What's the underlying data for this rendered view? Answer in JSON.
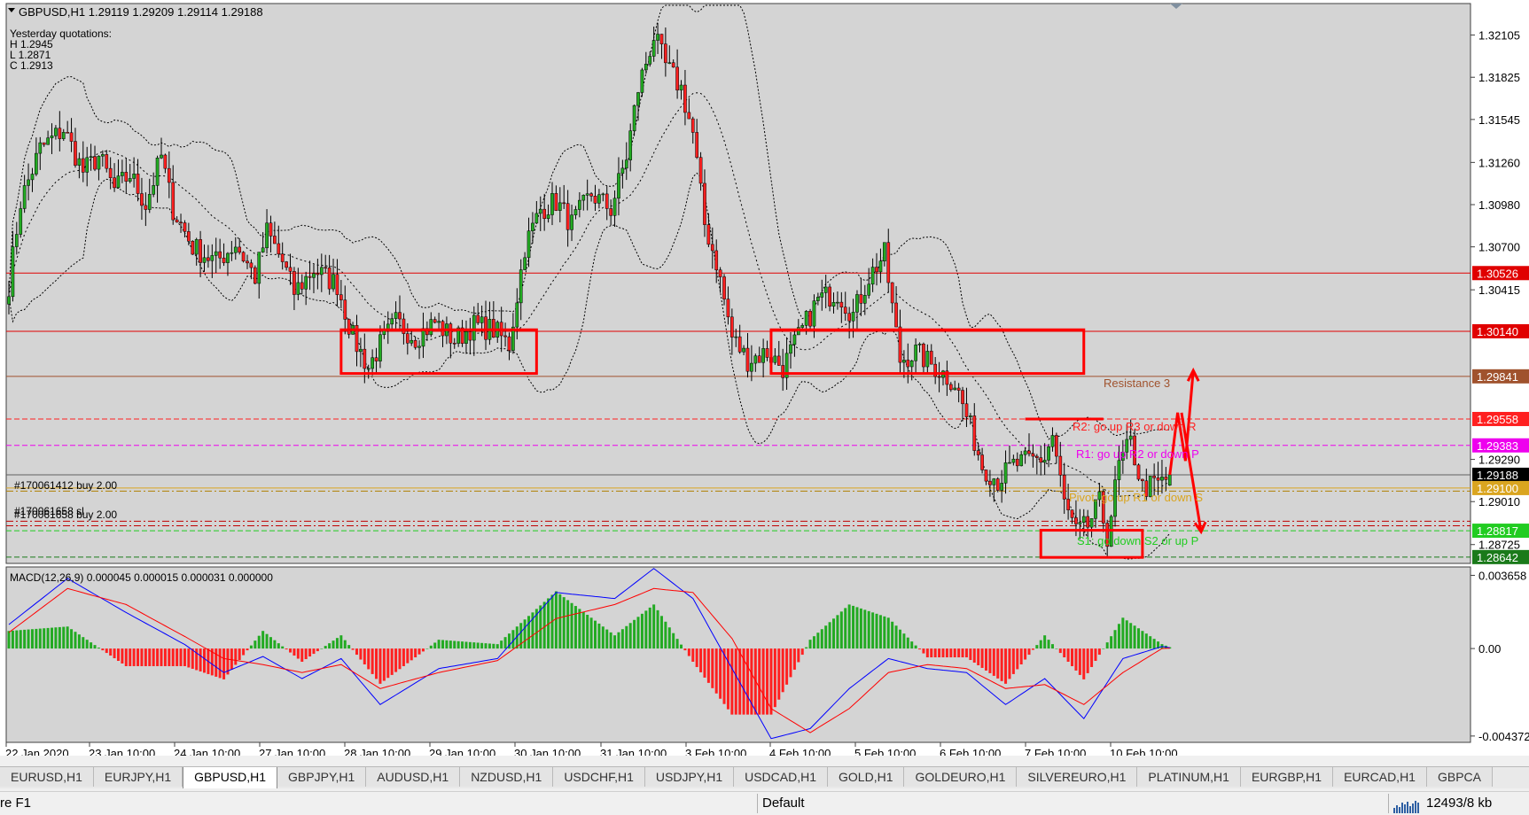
{
  "header": {
    "symbol_line": "GBPUSD,H1  1.29119 1.29209 1.29114 1.29188",
    "yesterday_title": "Yesterday quotations:",
    "yesterday_high": "H 1.2945",
    "yesterday_low": "L 1.2871",
    "yesterday_close": "C 1.2913"
  },
  "chart_data": [
    {
      "type": "candlestick",
      "symbol": "GBPUSD",
      "timeframe": "H1",
      "ohlc_current": {
        "open": 1.29119,
        "high": 1.29209,
        "low": 1.29114,
        "close": 1.29188
      },
      "ylim": [
        1.286,
        1.3222
      ],
      "y_ticks": [
        1.32105,
        1.31825,
        1.31545,
        1.3126,
        1.3098,
        1.307,
        1.30415,
        1.2929,
        1.2901,
        1.28725
      ],
      "y_tick_labels": [
        "1.32105",
        "1.31825",
        "1.31545",
        "1.31260",
        "1.30980",
        "1.30700",
        "1.30415",
        "1.29290",
        "1.29010",
        "1.28725"
      ],
      "x_labels": [
        "22 Jan 2020",
        "23 Jan 10:00",
        "24 Jan 10:00",
        "27 Jan 10:00",
        "28 Jan 10:00",
        "29 Jan 10:00",
        "30 Jan 10:00",
        "31 Jan 10:00",
        "3 Feb 10:00",
        "4 Feb 10:00",
        "5 Feb 10:00",
        "6 Feb 10:00",
        "7 Feb 10:00",
        "10 Feb 10:00"
      ],
      "overlay": "bollinger-bands",
      "price_path": [
        [
          0,
          1.3045
        ],
        [
          3,
          1.31
        ],
        [
          8,
          1.3135
        ],
        [
          14,
          1.3148
        ],
        [
          19,
          1.312
        ],
        [
          23,
          1.313
        ],
        [
          27,
          1.3108
        ],
        [
          31,
          1.3118
        ],
        [
          35,
          1.3098
        ],
        [
          39,
          1.313
        ],
        [
          42,
          1.3095
        ],
        [
          47,
          1.307
        ],
        [
          53,
          1.306
        ],
        [
          58,
          1.3072
        ],
        [
          63,
          1.305
        ],
        [
          66,
          1.308
        ],
        [
          70,
          1.306
        ],
        [
          73,
          1.304
        ],
        [
          78,
          1.3055
        ],
        [
          84,
          1.3045
        ],
        [
          88,
          1.301
        ],
        [
          92,
          1.299
        ],
        [
          95,
          1.3005
        ],
        [
          99,
          1.302
        ],
        [
          104,
          1.301
        ],
        [
          109,
          1.302
        ],
        [
          114,
          1.3008
        ],
        [
          119,
          1.3018
        ],
        [
          124,
          1.3015
        ],
        [
          128,
          1.3005
        ],
        [
          132,
          1.307
        ],
        [
          136,
          1.3095
        ],
        [
          140,
          1.31
        ],
        [
          144,
          1.3085
        ],
        [
          149,
          1.3105
        ],
        [
          154,
          1.3095
        ],
        [
          158,
          1.313
        ],
        [
          161,
          1.3175
        ],
        [
          165,
          1.321
        ],
        [
          168,
          1.319
        ],
        [
          172,
          1.3175
        ],
        [
          175,
          1.3145
        ],
        [
          178,
          1.3085
        ],
        [
          181,
          1.306
        ],
        [
          185,
          1.301
        ],
        [
          189,
          1.2995
        ],
        [
          194,
          1.3
        ],
        [
          198,
          1.299
        ],
        [
          203,
          1.3015
        ],
        [
          207,
          1.3035
        ],
        [
          212,
          1.304
        ],
        [
          216,
          1.3025
        ],
        [
          220,
          1.305
        ],
        [
          224,
          1.3065
        ],
        [
          228,
          1.2995
        ],
        [
          232,
          1.3
        ],
        [
          237,
          1.299
        ],
        [
          242,
          1.298
        ],
        [
          246,
          1.295
        ],
        [
          249,
          1.2925
        ],
        [
          253,
          1.2915
        ],
        [
          257,
          1.2925
        ],
        [
          261,
          1.2928
        ],
        [
          265,
          1.293
        ],
        [
          267,
          1.2945
        ],
        [
          270,
          1.29
        ],
        [
          273,
          1.288
        ],
        [
          276,
          1.2885
        ],
        [
          279,
          1.29
        ],
        [
          281,
          1.2878
        ],
        [
          284,
          1.2925
        ],
        [
          287,
          1.294
        ],
        [
          290,
          1.291
        ],
        [
          293,
          1.2912
        ],
        [
          296,
          1.2915
        ],
        [
          297,
          1.29188
        ]
      ],
      "levels": [
        {
          "name": "level-1.30526",
          "value": 1.30526,
          "label": "1.30526",
          "color": "#e00000"
        },
        {
          "name": "level-1.30140",
          "value": 1.3014,
          "label": "1.30140",
          "color": "#e00000"
        },
        {
          "name": "level-1.29841",
          "value": 1.29841,
          "label": "1.29841",
          "color": "#a0522d"
        },
        {
          "name": "level-1.29558",
          "value": 1.29558,
          "label": "1.29558",
          "color": "#ff2020"
        },
        {
          "name": "level-1.29383",
          "value": 1.29383,
          "label": "1.29383",
          "color": "#ee00ee"
        },
        {
          "name": "level-1.29188",
          "value": 1.29188,
          "label": "1.29188",
          "color": "#000000"
        },
        {
          "name": "level-1.29100",
          "value": 1.291,
          "label": "1.29100",
          "color": "#daa520"
        },
        {
          "name": "level-1.28817",
          "value": 1.28817,
          "label": "1.28817",
          "color": "#22cc22"
        },
        {
          "name": "level-1.28642",
          "value": 1.28642,
          "label": "1.28642",
          "color": "#1a7a1a"
        }
      ],
      "order_labels": [
        "#170061412 buy 2.00",
        "#170061658 sl",
        "#170061658 buy 2.00"
      ],
      "pivot_labels": {
        "r3": "Resistance 3",
        "r2": "R2: go up R3 or down R",
        "r1": "R1: go up R2 or down P",
        "pivot": "Pivot: go up R1 or down S",
        "s1": "S1: go down S2 or up P"
      },
      "zones": [
        {
          "name": "zone-left",
          "i_from": 85,
          "i_to": 135,
          "p_low": 1.2986,
          "p_high": 1.3015
        },
        {
          "name": "zone-right",
          "i_from": 195,
          "i_to": 275,
          "p_low": 1.2986,
          "p_high": 1.3015
        },
        {
          "name": "zone-bottom",
          "i_from": 264,
          "i_to": 290,
          "p_low": 1.2864,
          "p_high": 1.2882
        }
      ]
    },
    {
      "type": "histogram-line",
      "title": "MACD(12,26,9) 0.000045 0.000015 0.000031 0.000000",
      "y_ticks": [
        0.003658,
        0.0,
        -0.004372
      ],
      "y_tick_labels": [
        "0.003658",
        "0.00",
        "-0.004372"
      ],
      "ylim": [
        -0.0046,
        0.0039
      ],
      "macd_path": [
        [
          0,
          0.0012
        ],
        [
          15,
          0.0035
        ],
        [
          30,
          0.0018
        ],
        [
          45,
          0.0002
        ],
        [
          55,
          -0.0012
        ],
        [
          65,
          -0.0004
        ],
        [
          75,
          -0.0015
        ],
        [
          85,
          -0.0005
        ],
        [
          95,
          -0.0028
        ],
        [
          110,
          -0.001
        ],
        [
          125,
          -0.0005
        ],
        [
          140,
          0.0028
        ],
        [
          155,
          0.0025
        ],
        [
          165,
          0.004
        ],
        [
          175,
          0.0025
        ],
        [
          185,
          -0.001
        ],
        [
          195,
          -0.0045
        ],
        [
          205,
          -0.004
        ],
        [
          215,
          -0.002
        ],
        [
          225,
          -0.0005
        ],
        [
          235,
          -0.001
        ],
        [
          245,
          -0.0012
        ],
        [
          255,
          -0.0028
        ],
        [
          265,
          -0.0015
        ],
        [
          275,
          -0.0035
        ],
        [
          285,
          -0.0005
        ],
        [
          295,
          0.0001
        ],
        [
          297,
          4.5e-05
        ]
      ],
      "signal_path": [
        [
          0,
          0.0008
        ],
        [
          15,
          0.003
        ],
        [
          30,
          0.0022
        ],
        [
          45,
          0.0006
        ],
        [
          55,
          -0.0005
        ],
        [
          65,
          -0.0008
        ],
        [
          75,
          -0.0012
        ],
        [
          85,
          -0.0008
        ],
        [
          95,
          -0.002
        ],
        [
          110,
          -0.0012
        ],
        [
          125,
          -0.0006
        ],
        [
          140,
          0.0015
        ],
        [
          155,
          0.0022
        ],
        [
          165,
          0.003
        ],
        [
          175,
          0.0028
        ],
        [
          185,
          0.0005
        ],
        [
          195,
          -0.003
        ],
        [
          205,
          -0.0042
        ],
        [
          215,
          -0.003
        ],
        [
          225,
          -0.0012
        ],
        [
          235,
          -0.0008
        ],
        [
          245,
          -0.001
        ],
        [
          255,
          -0.002
        ],
        [
          265,
          -0.0018
        ],
        [
          275,
          -0.0028
        ],
        [
          285,
          -0.0012
        ],
        [
          295,
          0.0
        ],
        [
          297,
          1.5e-05
        ]
      ]
    }
  ],
  "tabs": [
    "EURUSD,H1",
    "EURJPY,H1",
    "GBPUSD,H1",
    "GBPJPY,H1",
    "AUDUSD,H1",
    "NZDUSD,H1",
    "USDCHF,H1",
    "USDJPY,H1",
    "USDCAD,H1",
    "GOLD,H1",
    "GOLDEURO,H1",
    "SILVEREURO,H1",
    "PLATINUM,H1",
    "EURGBP,H1",
    "EURCAD,H1",
    "GBPCA"
  ],
  "active_tab": "GBPUSD,H1",
  "status": {
    "help": "re F1",
    "profile": "Default",
    "traffic": "12493/8 kb"
  },
  "colors": {
    "bull": "#22aa22",
    "bear": "#ff2020",
    "macd_line": "#0000ff",
    "signal_line": "#ff0000",
    "zone": "#ff0000"
  }
}
